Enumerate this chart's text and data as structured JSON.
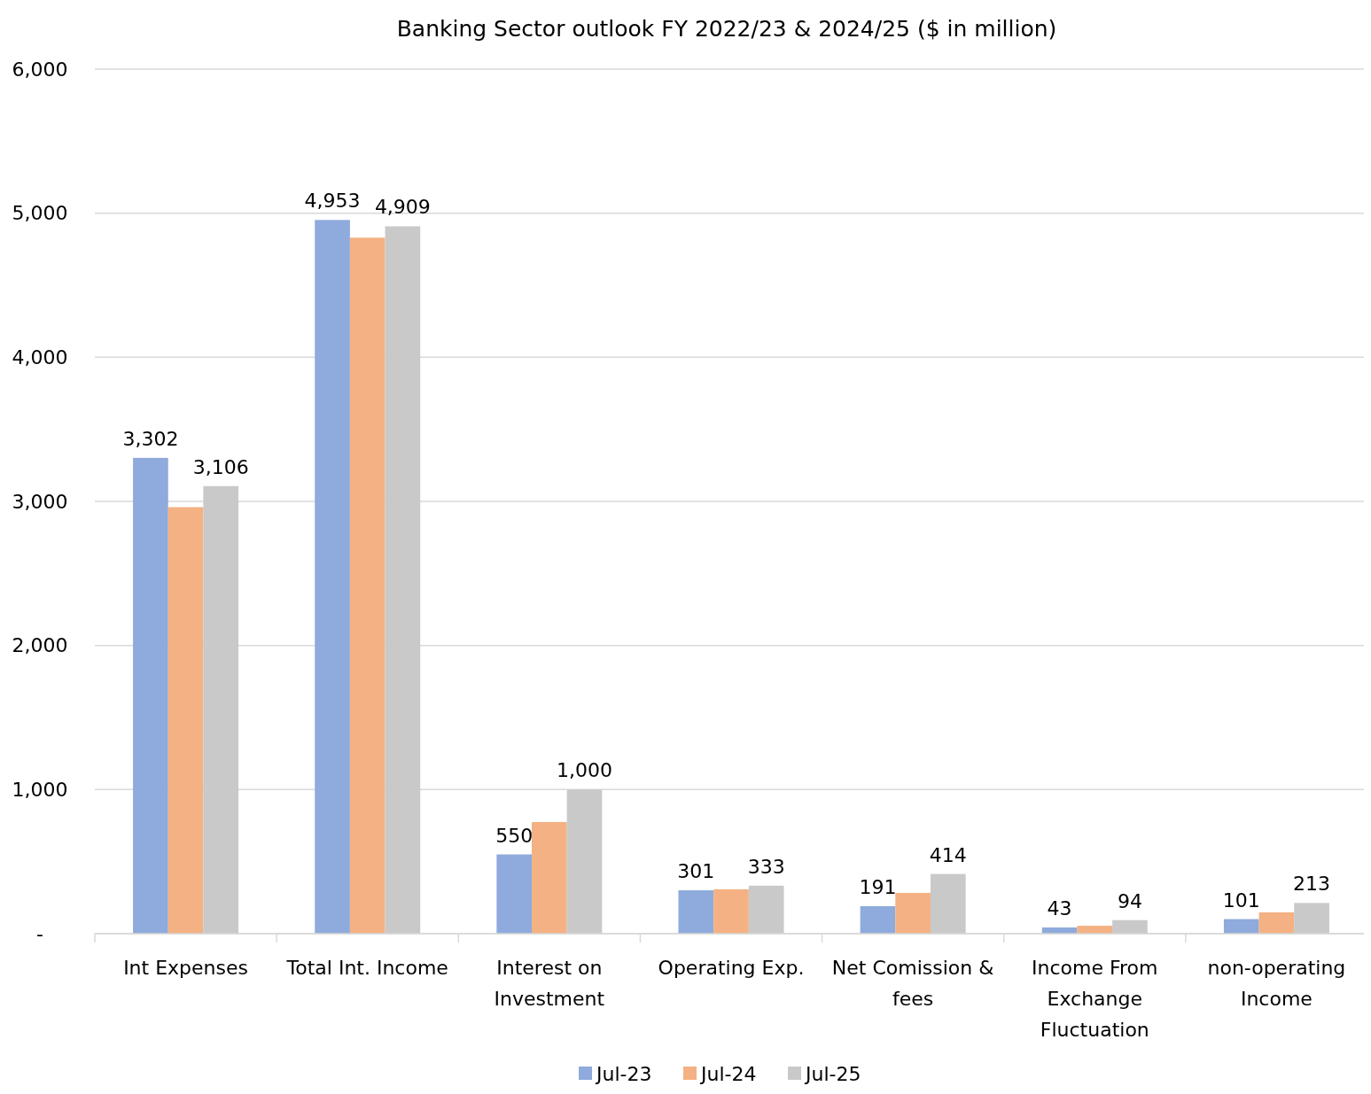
{
  "chart_data": {
    "type": "bar",
    "title": "Banking Sector outlook FY 2022/23 & 2024/25 ($ in million)",
    "categories": [
      "Int Expenses",
      "Total Int. Income",
      "Interest on Investment",
      "Operating Exp.",
      "Net Comission & fees",
      "Income From Exchange Fluctuation",
      "non-operating Income"
    ],
    "series": [
      {
        "name": "Jul-23",
        "color": "#8faadc",
        "values": [
          3302,
          4953,
          550,
          301,
          191,
          43,
          101
        ],
        "value_labels": [
          "3,302",
          "4,953",
          "550",
          "301",
          "191",
          "43",
          "101"
        ]
      },
      {
        "name": "Jul-24",
        "color": "#f4b183",
        "values": [
          2960,
          4830,
          775,
          308,
          283,
          55,
          148
        ]
      },
      {
        "name": "Jul-25",
        "color": "#c9c9c9",
        "values": [
          3106,
          4909,
          1000,
          333,
          414,
          94,
          213
        ],
        "value_labels": [
          "3,106",
          "4,909",
          "1,000",
          "333",
          "414",
          "94",
          "213"
        ]
      }
    ],
    "ylim": [
      0,
      6000
    ],
    "yticks": [
      {
        "value": 0,
        "label": "-"
      },
      {
        "value": 1000,
        "label": "1,000"
      },
      {
        "value": 2000,
        "label": "2,000"
      },
      {
        "value": 3000,
        "label": "3,000"
      },
      {
        "value": 4000,
        "label": "4,000"
      },
      {
        "value": 5000,
        "label": "5,000"
      },
      {
        "value": 6000,
        "label": "6,000"
      }
    ],
    "grid": "y",
    "legend": "bottom"
  }
}
